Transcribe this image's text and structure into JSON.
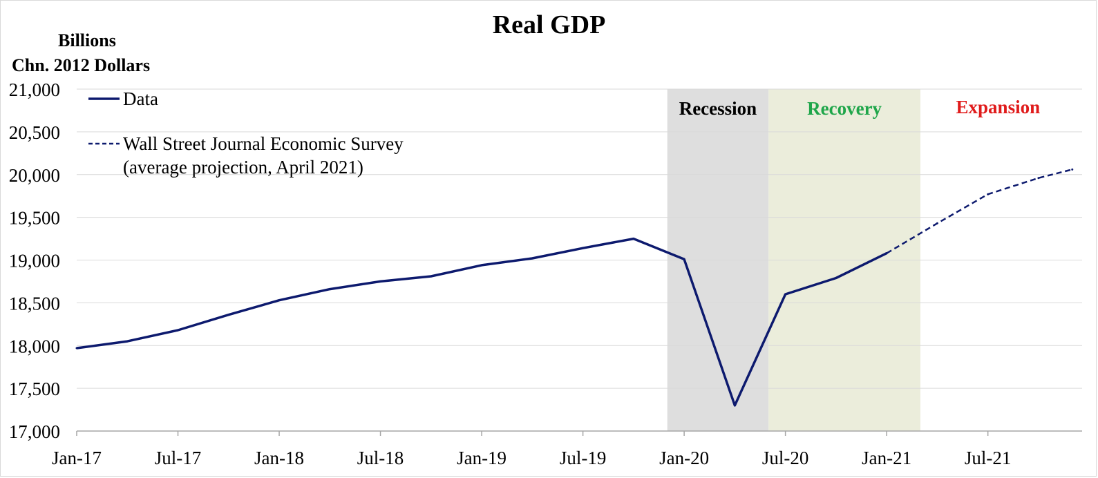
{
  "chart_data": {
    "type": "line",
    "title": "Real GDP",
    "ylabel_lines": [
      "Billions",
      "Chn. 2012 Dollars"
    ],
    "ylim": [
      17000,
      21000
    ],
    "y_ticks": [
      "21,000",
      "20,500",
      "20,000",
      "19,500",
      "19,000",
      "18,500",
      "18,000",
      "17,500",
      "17,000"
    ],
    "y_tick_values": [
      21000,
      20500,
      20000,
      19500,
      19000,
      18500,
      18000,
      17500,
      17000
    ],
    "x_ticks": [
      "Jan-17",
      "Jul-17",
      "Jan-18",
      "Jul-18",
      "Jan-19",
      "Jul-19",
      "Jan-20",
      "Jul-20",
      "Jan-21",
      "Jul-21"
    ],
    "x_tick_months": [
      0,
      6,
      12,
      18,
      24,
      30,
      36,
      42,
      48,
      54
    ],
    "x_range_months": [
      0,
      59
    ],
    "grid": "horizontal",
    "shaded_regions": [
      {
        "label": "Recession",
        "start_month": 35,
        "end_month": 41,
        "fill": "#dedede",
        "label_color": "#000000"
      },
      {
        "label": "Recovery",
        "start_month": 41,
        "end_month": 50,
        "fill": "#ebeddb",
        "label_color": "#1fa64a"
      }
    ],
    "annotations": [
      {
        "text": "Expansion",
        "color": "#e01b1b",
        "month": 54.6,
        "value": 20780
      }
    ],
    "legend_position": "top-left",
    "series": [
      {
        "name": "Data",
        "style": "solid",
        "color": "#0d1a6e",
        "x_months": [
          0,
          3,
          6,
          9,
          12,
          15,
          18,
          21,
          24,
          27,
          30,
          33,
          36,
          39,
          42,
          45,
          48
        ],
        "values": [
          17970,
          18050,
          18180,
          18360,
          18530,
          18660,
          18750,
          18810,
          18940,
          19020,
          19140,
          19250,
          19010,
          17300,
          18600,
          18790,
          19080
        ]
      },
      {
        "name": "Wall Street Journal Economic Survey",
        "name_line2": "(average projection, April 2021)",
        "style": "dashed",
        "color": "#0d1a6e",
        "x_months": [
          48,
          51,
          54,
          57,
          59
        ],
        "values": [
          19080,
          19430,
          19770,
          19960,
          20060
        ]
      }
    ]
  }
}
